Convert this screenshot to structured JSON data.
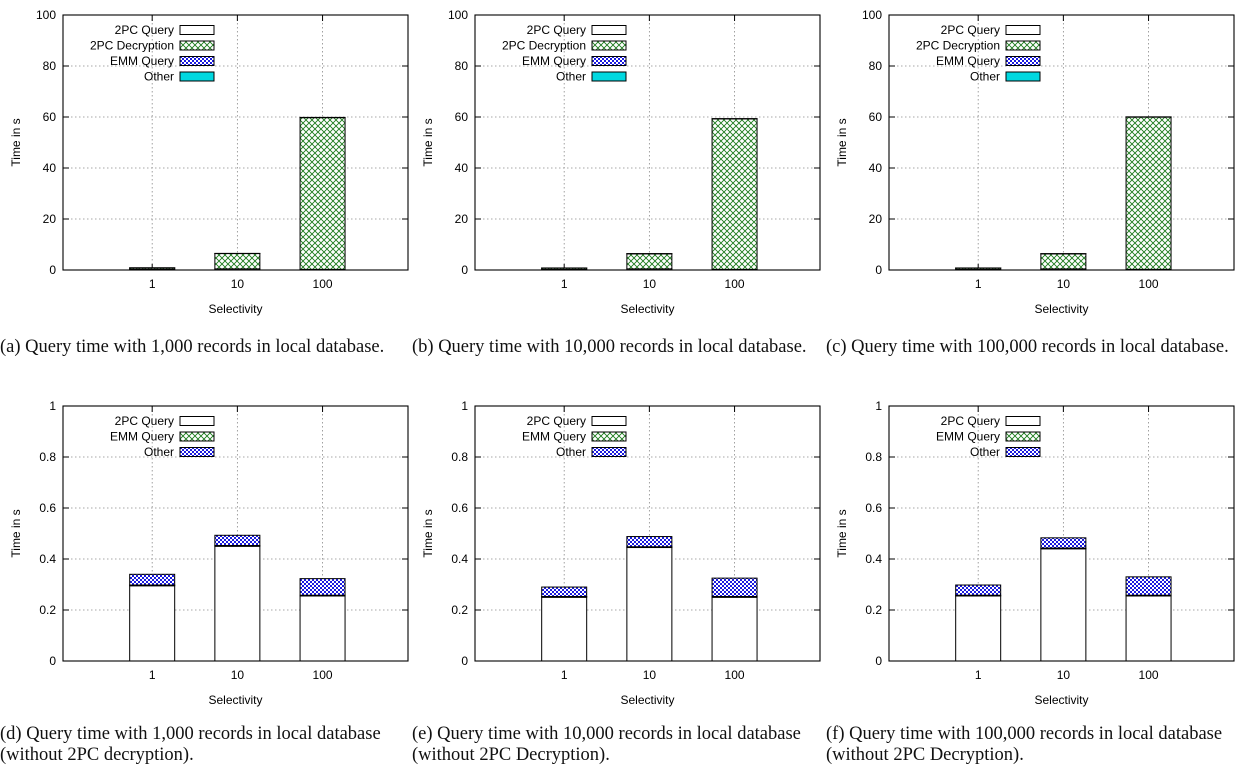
{
  "colors": {
    "2pc_query_fill": "#ffffff",
    "2pc_decryption_fill": "#1b7a1b",
    "emm_query_fill": "#1a1adf",
    "other_fill": "#00d8e0",
    "grid": "#8a8a8a",
    "axis": "#000000"
  },
  "chart_data": [
    {
      "type": "bar",
      "stacked": true,
      "caption": "(a) Query time with 1,000 records in local database.",
      "xlabel": "Selectivity",
      "ylabel": "Time in s",
      "categories": [
        "1",
        "10",
        "100"
      ],
      "ylim": [
        0,
        100
      ],
      "yticks": [
        "0",
        "20",
        "40",
        "60",
        "80",
        "100"
      ],
      "grid": true,
      "legend_position": "top-left",
      "series": [
        {
          "name": "2PC Query",
          "pattern": "blank",
          "values": [
            0.3,
            0.45,
            0.25
          ]
        },
        {
          "name": "2PC Decryption",
          "pattern": "crosshatch-green",
          "values": [
            0.5,
            6.0,
            59.5
          ]
        },
        {
          "name": "EMM Query",
          "pattern": "checker-blue",
          "values": [
            0.04,
            0.04,
            0.07
          ]
        },
        {
          "name": "Other",
          "pattern": "solid-cyan",
          "values": [
            0.01,
            0.01,
            0.01
          ]
        }
      ]
    },
    {
      "type": "bar",
      "stacked": true,
      "caption": "(b) Query time with 10,000 records in local database.",
      "xlabel": "Selectivity",
      "ylabel": "Time in s",
      "categories": [
        "1",
        "10",
        "100"
      ],
      "ylim": [
        0,
        100
      ],
      "yticks": [
        "0",
        "20",
        "40",
        "60",
        "80",
        "100"
      ],
      "grid": true,
      "legend_position": "top-left",
      "series": [
        {
          "name": "2PC Query",
          "pattern": "blank",
          "values": [
            0.25,
            0.45,
            0.25
          ]
        },
        {
          "name": "2PC Decryption",
          "pattern": "crosshatch-green",
          "values": [
            0.5,
            5.9,
            59.0
          ]
        },
        {
          "name": "EMM Query",
          "pattern": "checker-blue",
          "values": [
            0.04,
            0.04,
            0.07
          ]
        },
        {
          "name": "Other",
          "pattern": "solid-cyan",
          "values": [
            0.01,
            0.01,
            0.01
          ]
        }
      ]
    },
    {
      "type": "bar",
      "stacked": true,
      "caption": "(c) Query time with 100,000 records in local database.",
      "xlabel": "Selectivity",
      "ylabel": "Time in s",
      "categories": [
        "1",
        "10",
        "100"
      ],
      "ylim": [
        0,
        100
      ],
      "yticks": [
        "0",
        "20",
        "40",
        "60",
        "80",
        "100"
      ],
      "grid": true,
      "legend_position": "top-left",
      "series": [
        {
          "name": "2PC Query",
          "pattern": "blank",
          "values": [
            0.25,
            0.44,
            0.26
          ]
        },
        {
          "name": "2PC Decryption",
          "pattern": "crosshatch-green",
          "values": [
            0.5,
            5.9,
            59.7
          ]
        },
        {
          "name": "EMM Query",
          "pattern": "checker-blue",
          "values": [
            0.04,
            0.04,
            0.07
          ]
        },
        {
          "name": "Other",
          "pattern": "solid-cyan",
          "values": [
            0.01,
            0.01,
            0.01
          ]
        }
      ]
    },
    {
      "type": "bar",
      "stacked": true,
      "caption": "(d) Query time with 1,000 records in local database (without 2PC decryption).",
      "xlabel": "Selectivity",
      "ylabel": "Time in s",
      "categories": [
        "1",
        "10",
        "100"
      ],
      "ylim": [
        0,
        1
      ],
      "yticks": [
        "0",
        "0.2",
        "0.4",
        "0.6",
        "0.8",
        "1"
      ],
      "grid": true,
      "legend_position": "top-left",
      "series": [
        {
          "name": "2PC Query",
          "pattern": "blank",
          "values": [
            0.295,
            0.45,
            0.255
          ]
        },
        {
          "name": "EMM Query",
          "pattern": "crosshatch-green",
          "values": [
            0.003,
            0.003,
            0.003
          ]
        },
        {
          "name": "Other",
          "pattern": "checker-blue",
          "values": [
            0.042,
            0.04,
            0.065
          ]
        }
      ]
    },
    {
      "type": "bar",
      "stacked": true,
      "caption": "(e) Query time with 10,000 records in local database (without 2PC Decryption).",
      "xlabel": "Selectivity",
      "ylabel": "Time in s",
      "categories": [
        "1",
        "10",
        "100"
      ],
      "ylim": [
        0,
        1
      ],
      "yticks": [
        "0",
        "0.2",
        "0.4",
        "0.6",
        "0.8",
        "1"
      ],
      "grid": true,
      "legend_position": "top-left",
      "series": [
        {
          "name": "2PC Query",
          "pattern": "blank",
          "values": [
            0.25,
            0.445,
            0.25
          ]
        },
        {
          "name": "EMM Query",
          "pattern": "crosshatch-green",
          "values": [
            0.003,
            0.003,
            0.003
          ]
        },
        {
          "name": "Other",
          "pattern": "checker-blue",
          "values": [
            0.037,
            0.04,
            0.072
          ]
        }
      ]
    },
    {
      "type": "bar",
      "stacked": true,
      "caption": "(f) Query time with 100,000 records in local database (without 2PC Decryption).",
      "xlabel": "Selectivity",
      "ylabel": "Time in s",
      "categories": [
        "1",
        "10",
        "100"
      ],
      "ylim": [
        0,
        1
      ],
      "yticks": [
        "0",
        "0.2",
        "0.4",
        "0.6",
        "0.8",
        "1"
      ],
      "grid": true,
      "legend_position": "top-left",
      "series": [
        {
          "name": "2PC Query",
          "pattern": "blank",
          "values": [
            0.255,
            0.44,
            0.255
          ]
        },
        {
          "name": "EMM Query",
          "pattern": "crosshatch-green",
          "values": [
            0.003,
            0.003,
            0.003
          ]
        },
        {
          "name": "Other",
          "pattern": "checker-blue",
          "values": [
            0.04,
            0.04,
            0.072
          ]
        }
      ]
    }
  ]
}
